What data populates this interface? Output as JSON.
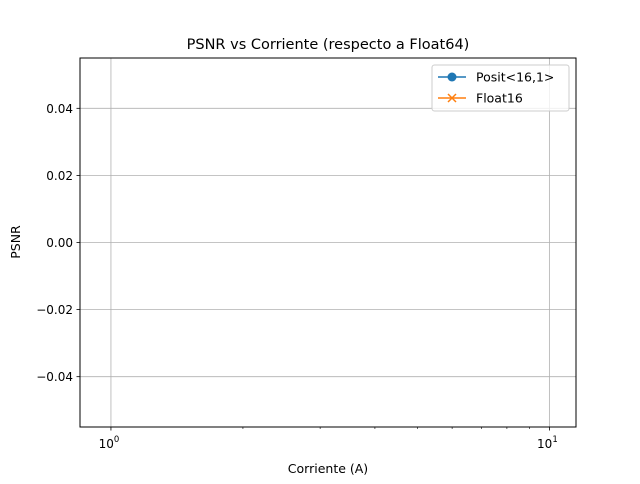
{
  "chart_data": {
    "type": "line",
    "title": "PSNR vs Corriente (respecto a Float64)",
    "xlabel": "Corriente (A)",
    "ylabel": "PSNR",
    "xscale": "log",
    "xlim": [
      0.85,
      11.5
    ],
    "ylim": [
      -0.055,
      0.055
    ],
    "x_major_ticks": [
      1,
      10
    ],
    "x_tick_base": "10",
    "x_tick_exponents": [
      "0",
      "1"
    ],
    "x_minor_ticks": [
      2,
      3,
      4,
      5,
      6,
      7,
      8,
      9
    ],
    "y_ticks": [
      -0.04,
      -0.02,
      0.0,
      0.02,
      0.04
    ],
    "y_tick_labels": [
      "−0.04",
      "−0.02",
      "0.00",
      "0.02",
      "0.04"
    ],
    "grid": true,
    "legend_position": "top-right",
    "series": [
      {
        "name": "Posit<16,1>",
        "color": "#1f77b4",
        "marker": "circle",
        "x": [],
        "y": []
      },
      {
        "name": "Float16",
        "color": "#ff7f0e",
        "marker": "x",
        "x": [],
        "y": []
      }
    ]
  }
}
